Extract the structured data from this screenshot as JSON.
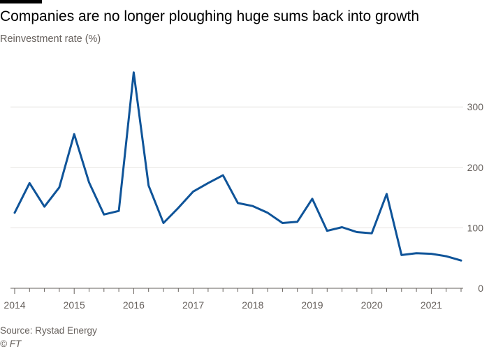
{
  "chart_data": {
    "type": "line",
    "title": "Companies are no longer ploughing huge sums back into growth",
    "ylabel": "Reinvestment rate (%)",
    "xlabel": "",
    "source": "Source: Rystad Energy",
    "credit": "© FT",
    "ylim": [
      0,
      360
    ],
    "y_ticks": [
      0,
      100,
      200,
      300
    ],
    "x_range": [
      2014,
      2021.5
    ],
    "x_ticks": [
      2014,
      2015,
      2016,
      2017,
      2018,
      2019,
      2020,
      2021
    ],
    "grid": true,
    "line_color": "#0f5499",
    "series": [
      {
        "x": [
          2014,
          2014.25,
          2014.5,
          2014.75,
          2015,
          2015.25,
          2015.5,
          2015.75,
          2016,
          2016.25,
          2016.5,
          2016.75,
          2017,
          2017.25,
          2017.5,
          2017.75,
          2018,
          2018.25,
          2018.5,
          2018.75,
          2019,
          2019.25,
          2019.5,
          2019.75,
          2020,
          2020.25,
          2020.5,
          2020.75,
          2021,
          2021.25,
          2021.5
        ],
        "values": [
          125,
          174,
          135,
          167,
          255,
          175,
          122,
          128,
          357,
          170,
          108,
          133,
          160,
          174,
          187,
          141,
          136,
          125,
          108,
          110,
          148,
          95,
          101,
          93,
          91,
          156,
          55,
          58,
          57,
          53,
          46
        ]
      }
    ]
  }
}
